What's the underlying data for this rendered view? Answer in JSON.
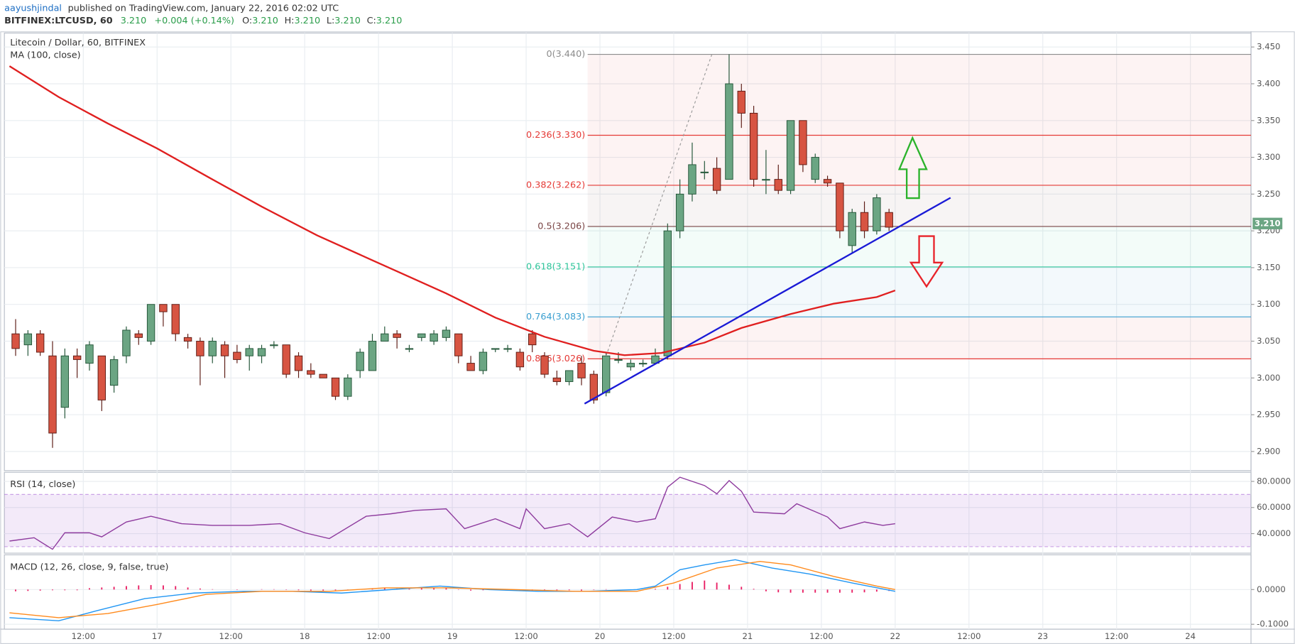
{
  "header": {
    "author": "aayushjindal",
    "published": "published on TradingView.com, January 22, 2016 02:02 UTC",
    "symbol": "BITFINEX:LTCUSD, 60",
    "last": "3.210",
    "change": "+0.004 (+0.14%)",
    "o_label": "O:",
    "o": "3.210",
    "h_label": "H:",
    "h": "3.210",
    "l_label": "L:",
    "l": "3.210",
    "c_label": "C:",
    "c": "3.210"
  },
  "chart_data": [
    {
      "type": "candlestick",
      "title": "Litecoin / Dollar, 60, BITFINEX",
      "up_color": "#6ba583",
      "up_border": "#225437",
      "down_color": "#d75442",
      "down_border": "#5b1a13",
      "x": [
        1,
        3,
        5,
        7,
        9,
        11,
        13,
        15,
        17,
        19,
        21,
        23,
        25,
        27,
        29,
        31,
        33,
        35,
        37,
        39,
        41,
        43,
        45,
        47,
        49,
        51,
        53,
        55,
        57,
        59,
        61,
        63,
        65,
        67,
        69,
        71,
        73,
        75,
        77,
        79,
        81,
        83,
        85,
        87,
        89,
        91,
        93,
        95,
        97,
        99,
        101,
        103,
        105,
        107,
        109,
        111,
        113,
        115,
        117,
        119,
        121,
        123,
        125,
        127,
        129,
        131,
        133,
        135,
        137,
        139,
        141,
        143
      ],
      "ohlc": [
        [
          3.06,
          3.08,
          3.03,
          3.04
        ],
        [
          3.045,
          3.065,
          3.03,
          3.06
        ],
        [
          3.06,
          3.065,
          3.03,
          3.035
        ],
        [
          3.03,
          3.05,
          2.905,
          2.925
        ],
        [
          2.96,
          3.04,
          2.945,
          3.03
        ],
        [
          3.03,
          3.04,
          3.0,
          3.025
        ],
        [
          3.02,
          3.05,
          3.01,
          3.045
        ],
        [
          3.03,
          3.03,
          2.955,
          2.97
        ],
        [
          2.99,
          3.03,
          2.98,
          3.025
        ],
        [
          3.03,
          3.07,
          3.02,
          3.065
        ],
        [
          3.06,
          3.065,
          3.045,
          3.055
        ],
        [
          3.05,
          3.1,
          3.045,
          3.1
        ],
        [
          3.1,
          3.1,
          3.07,
          3.09
        ],
        [
          3.1,
          3.1,
          3.05,
          3.06
        ],
        [
          3.055,
          3.06,
          3.04,
          3.05
        ],
        [
          3.05,
          3.055,
          2.99,
          3.03
        ],
        [
          3.03,
          3.055,
          3.02,
          3.05
        ],
        [
          3.045,
          3.05,
          3.0,
          3.03
        ],
        [
          3.035,
          3.045,
          3.02,
          3.025
        ],
        [
          3.03,
          3.045,
          3.01,
          3.04
        ],
        [
          3.03,
          3.045,
          3.02,
          3.04
        ],
        [
          3.045,
          3.05,
          3.04,
          3.045
        ],
        [
          3.045,
          3.045,
          3.0,
          3.005
        ],
        [
          3.03,
          3.035,
          3.0,
          3.01
        ],
        [
          3.01,
          3.02,
          3.0,
          3.005
        ],
        [
          3.005,
          3.005,
          3.0,
          3.0
        ],
        [
          3.0,
          3.0,
          2.97,
          2.975
        ],
        [
          2.975,
          3.005,
          2.97,
          3.0
        ],
        [
          3.01,
          3.04,
          3.0,
          3.035
        ],
        [
          3.01,
          3.06,
          3.01,
          3.05
        ],
        [
          3.05,
          3.07,
          3.05,
          3.06
        ],
        [
          3.06,
          3.065,
          3.04,
          3.055
        ],
        [
          3.04,
          3.045,
          3.035,
          3.04
        ],
        [
          3.055,
          3.06,
          3.05,
          3.06
        ],
        [
          3.05,
          3.065,
          3.045,
          3.06
        ],
        [
          3.055,
          3.07,
          3.05,
          3.065
        ],
        [
          3.06,
          3.06,
          3.02,
          3.03
        ],
        [
          3.02,
          3.03,
          3.01,
          3.01
        ],
        [
          3.01,
          3.04,
          3.005,
          3.035
        ],
        [
          3.04,
          3.04,
          3.035,
          3.04
        ],
        [
          3.04,
          3.045,
          3.035,
          3.04
        ],
        [
          3.035,
          3.04,
          3.01,
          3.015
        ],
        [
          3.06,
          3.065,
          3.035,
          3.045
        ],
        [
          3.03,
          3.035,
          3.0,
          3.005
        ],
        [
          3.0,
          3.01,
          2.99,
          2.995
        ],
        [
          2.995,
          3.01,
          2.99,
          3.01
        ],
        [
          3.02,
          3.03,
          2.99,
          3.0
        ],
        [
          3.005,
          3.01,
          2.965,
          2.97
        ],
        [
          2.98,
          3.035,
          2.975,
          3.03
        ],
        [
          3.025,
          3.035,
          3.02,
          3.025
        ],
        [
          3.015,
          3.025,
          3.01,
          3.02
        ],
        [
          3.02,
          3.025,
          3.015,
          3.02
        ],
        [
          3.02,
          3.04,
          3.02,
          3.03
        ],
        [
          3.03,
          3.21,
          3.025,
          3.2
        ],
        [
          3.2,
          3.27,
          3.19,
          3.25
        ],
        [
          3.25,
          3.32,
          3.24,
          3.29
        ],
        [
          3.28,
          3.295,
          3.27,
          3.28
        ],
        [
          3.285,
          3.3,
          3.25,
          3.255
        ],
        [
          3.27,
          3.44,
          3.27,
          3.4
        ],
        [
          3.39,
          3.4,
          3.34,
          3.36
        ],
        [
          3.36,
          3.37,
          3.26,
          3.27
        ],
        [
          3.27,
          3.31,
          3.25,
          3.27
        ],
        [
          3.27,
          3.29,
          3.25,
          3.255
        ],
        [
          3.255,
          3.35,
          3.25,
          3.35
        ],
        [
          3.35,
          3.35,
          3.28,
          3.29
        ],
        [
          3.27,
          3.305,
          3.265,
          3.3
        ],
        [
          3.27,
          3.275,
          3.26,
          3.265
        ],
        [
          3.265,
          3.265,
          3.19,
          3.2
        ],
        [
          3.18,
          3.23,
          3.17,
          3.225
        ],
        [
          3.225,
          3.24,
          3.19,
          3.2
        ],
        [
          3.2,
          3.25,
          3.195,
          3.245
        ],
        [
          3.225,
          3.23,
          3.2,
          3.205
        ]
      ],
      "series": [
        {
          "name": "MA (100, close)",
          "color": "#e01f1f",
          "x": [
            0,
            8,
            16,
            24,
            33,
            41,
            50,
            59,
            71,
            79,
            87,
            95,
            100,
            106,
            113,
            119,
            127,
            134,
            141,
            144
          ],
          "values": [
            3.424,
            3.382,
            3.346,
            3.312,
            3.27,
            3.233,
            3.194,
            3.16,
            3.115,
            3.082,
            3.056,
            3.037,
            3.031,
            3.034,
            3.048,
            3.068,
            3.087,
            3.101,
            3.11,
            3.119
          ]
        }
      ],
      "fib": {
        "x_start": 94,
        "levels": [
          {
            "label": "0(3.440)",
            "value": 3.44,
            "color": "#8c8c8c"
          },
          {
            "label": "0.236(3.330)",
            "value": 3.33,
            "color": "#e53935"
          },
          {
            "label": "0.382(3.262)",
            "value": 3.262,
            "color": "#e53935"
          },
          {
            "label": "0.5(3.206)",
            "value": 3.206,
            "color": "#7a4545"
          },
          {
            "label": "0.618(3.151)",
            "value": 3.151,
            "color": "#2ec59a"
          },
          {
            "label": "0.764(3.083)",
            "value": 3.083,
            "color": "#3a9fd0"
          },
          {
            "label": "0.886(3.026)",
            "value": 3.026,
            "color": "#e53935"
          }
        ]
      },
      "trendlines": [
        {
          "color": "#1a1ad6",
          "width": 2,
          "x": [
            93.5,
            153
          ],
          "values": [
            2.965,
            3.245
          ]
        },
        {
          "color": "#9a9a9a",
          "width": 1,
          "dashed": true,
          "x": [
            97,
            114.2
          ],
          "values": [
            3.03,
            3.44
          ]
        }
      ],
      "last_price": {
        "value": 3.21,
        "label": "3.210"
      },
      "xlim": [
        -0.83,
        201.85
      ],
      "xticks": [
        {
          "value": 12,
          "label": "12:00"
        },
        {
          "value": 24,
          "label": "17"
        },
        {
          "value": 36,
          "label": "12:00"
        },
        {
          "value": 48,
          "label": "18"
        },
        {
          "value": 60,
          "label": "12:00"
        },
        {
          "value": 72,
          "label": "19"
        },
        {
          "value": 84,
          "label": "12:00"
        },
        {
          "value": 96,
          "label": "20"
        },
        {
          "value": 108,
          "label": "12:00"
        },
        {
          "value": 120,
          "label": "21"
        },
        {
          "value": 132,
          "label": "12:00"
        },
        {
          "value": 144,
          "label": "22"
        },
        {
          "value": 156,
          "label": "12:00"
        },
        {
          "value": 168,
          "label": "23"
        },
        {
          "value": 180,
          "label": "12:00"
        },
        {
          "value": 192,
          "label": "24"
        }
      ],
      "ylim": [
        2.874,
        3.469
      ],
      "yticks": [
        {
          "value": 3.45,
          "label": "3.450"
        },
        {
          "value": 3.4,
          "label": "3.400"
        },
        {
          "value": 3.35,
          "label": "3.350"
        },
        {
          "value": 3.3,
          "label": "3.300"
        },
        {
          "value": 3.25,
          "label": "3.250"
        },
        {
          "value": 3.2,
          "label": "3.200"
        },
        {
          "value": 3.15,
          "label": "3.150"
        },
        {
          "value": 3.1,
          "label": "3.100"
        },
        {
          "value": 3.05,
          "label": "3.050"
        },
        {
          "value": 3.0,
          "label": "3.000"
        },
        {
          "value": 2.95,
          "label": "2.950"
        },
        {
          "value": 2.9,
          "label": "2.900"
        }
      ],
      "grid": true
    },
    {
      "type": "line",
      "title": "RSI (14, close)",
      "series": [
        {
          "color": "#8e3b9e",
          "x": [
            0,
            4,
            7,
            9,
            13,
            15,
            19,
            23,
            28,
            33,
            39,
            44,
            48,
            52,
            58,
            62,
            66,
            71,
            74,
            79,
            83,
            84,
            87,
            91,
            94,
            98,
            102,
            105,
            107,
            109,
            113,
            115,
            117,
            119,
            121,
            126,
            128,
            133,
            135,
            139,
            142,
            144
          ],
          "values": [
            34.3,
            36.8,
            28,
            40.6,
            40.6,
            37.5,
            48.9,
            53.3,
            47.6,
            46.3,
            46.3,
            47.6,
            40.6,
            36.2,
            53.3,
            55.2,
            57.8,
            59,
            43.8,
            51.4,
            43.8,
            59,
            43.8,
            47.6,
            37.5,
            52.7,
            48.9,
            51.4,
            75.6,
            83.2,
            76.8,
            70.5,
            80.6,
            72.4,
            56.5,
            55.2,
            62.9,
            52.7,
            43.8,
            48.9,
            46.3,
            47.6
          ]
        }
      ],
      "band": [
        30,
        70
      ],
      "band_color": "#9c4fd0",
      "ylim": [
        25,
        87
      ],
      "yticks": [
        {
          "value": 80,
          "label": "80.0000"
        },
        {
          "value": 60,
          "label": "60.0000"
        },
        {
          "value": 40,
          "label": "40.0000"
        }
      ],
      "grid": true
    },
    {
      "type": "macd",
      "title": "MACD (12, 26, close, 9, false, true)",
      "hist_color": "#e91e63",
      "hist_values": [
        -0.005,
        -0.004,
        -0.003,
        -0.002,
        -0.002,
        -0.002,
        0.004,
        0.006,
        0.008,
        0.01,
        0.012,
        0.013,
        0.012,
        0.01,
        0.006,
        0.003,
        0.001,
        0.0,
        -0.001,
        0.0,
        0.001,
        0.001,
        -0.001,
        -0.002,
        -0.003,
        -0.003,
        -0.002,
        -0.001,
        0.001,
        0.003,
        0.004,
        0.003,
        0.002,
        0.004,
        0.005,
        0.004,
        -0.001,
        -0.003,
        -0.002,
        -0.001,
        -0.001,
        -0.002,
        -0.003,
        -0.003,
        -0.002,
        -0.002,
        -0.003,
        -0.001,
        0.001,
        0.0,
        -0.001,
        0.0,
        0.002,
        0.008,
        0.016,
        0.022,
        0.026,
        0.02,
        0.014,
        0.008,
        0.002,
        -0.005,
        -0.008,
        -0.009,
        -0.009,
        -0.009,
        -0.009,
        -0.009,
        -0.009,
        -0.008,
        -0.006,
        -0.004
      ],
      "series": [
        {
          "color": "#2196f3",
          "x": [
            0,
            8,
            14,
            22,
            30,
            38,
            46,
            54,
            62,
            70,
            78,
            86,
            94,
            102,
            105,
            109,
            113,
            118,
            124,
            130,
            137,
            144
          ],
          "values": [
            -0.081,
            -0.09,
            -0.062,
            -0.026,
            -0.01,
            -0.005,
            -0.005,
            -0.01,
            0,
            0.01,
            0,
            -0.005,
            -0.005,
            0,
            0.01,
            0.057,
            0.071,
            0.086,
            0.062,
            0.045,
            0.019,
            -0.005
          ]
        },
        {
          "color": "#ff8a1c",
          "x": [
            0,
            8,
            16,
            24,
            32,
            41,
            52,
            61,
            71,
            82,
            92,
            102,
            108,
            115,
            122,
            127,
            134,
            141,
            144
          ],
          "values": [
            -0.067,
            -0.081,
            -0.069,
            -0.043,
            -0.014,
            -0.005,
            -0.005,
            0.005,
            0.005,
            0,
            -0.005,
            -0.005,
            0.019,
            0.062,
            0.081,
            0.071,
            0.038,
            0.01,
            0
          ]
        }
      ],
      "ylim": [
        -0.114,
        0.1
      ],
      "yticks": [
        {
          "value": 0,
          "label": "0.0000"
        },
        {
          "value": -0.1,
          "label": "-0.1000"
        }
      ],
      "grid": true
    }
  ]
}
